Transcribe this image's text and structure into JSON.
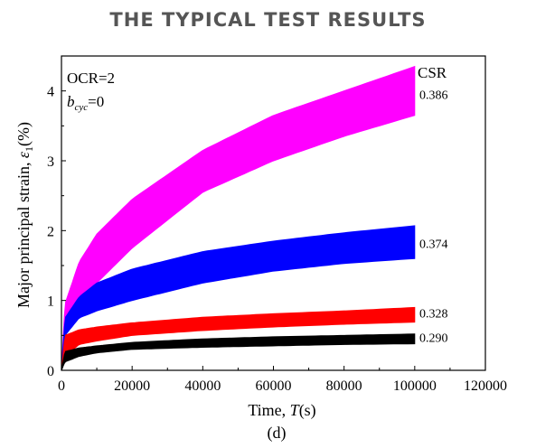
{
  "page": {
    "title": "THE TYPICAL TEST RESULTS"
  },
  "chart_data": {
    "type": "area",
    "panel_label": "(d)",
    "xlabel_prefix": "Time, ",
    "xlabel_symbol": "T",
    "xlabel_suffix": "(s)",
    "ylabel_prefix": "Major principal strain, ",
    "ylabel_symbol": "ε",
    "ylabel_subscript": "1",
    "ylabel_suffix": "(%)",
    "xlim": [
      0,
      120000
    ],
    "ylim": [
      0,
      4.5
    ],
    "xticks": [
      0,
      20000,
      40000,
      60000,
      80000,
      100000,
      120000
    ],
    "yticks": [
      0,
      1,
      2,
      3,
      4
    ],
    "annotations": {
      "ocr": "OCR=2",
      "bcyc_symbol": "b",
      "bcyc_subscript": "cyc",
      "bcyc_value": "=0"
    },
    "legend_title": "CSR",
    "x": [
      0,
      1000,
      5000,
      10000,
      20000,
      40000,
      60000,
      80000,
      100000
    ],
    "series": [
      {
        "name": "0.386",
        "color": "#ff00ff",
        "upper": [
          0.0,
          0.95,
          1.55,
          1.95,
          2.45,
          3.15,
          3.65,
          4.0,
          4.35
        ],
        "lower": [
          0.0,
          0.5,
          0.95,
          1.25,
          1.75,
          2.55,
          3.0,
          3.35,
          3.65
        ]
      },
      {
        "name": "0.374",
        "color": "#0000ff",
        "upper": [
          0.0,
          0.75,
          1.05,
          1.25,
          1.45,
          1.7,
          1.85,
          1.97,
          2.07
        ],
        "lower": [
          0.0,
          0.5,
          0.75,
          0.85,
          1.0,
          1.25,
          1.42,
          1.53,
          1.6
        ]
      },
      {
        "name": "0.328",
        "color": "#ff0000",
        "upper": [
          0.0,
          0.5,
          0.58,
          0.62,
          0.68,
          0.76,
          0.81,
          0.85,
          0.9
        ],
        "lower": [
          0.0,
          0.2,
          0.37,
          0.42,
          0.5,
          0.57,
          0.62,
          0.66,
          0.69
        ]
      },
      {
        "name": "0.290",
        "color": "#000000",
        "upper": [
          0.0,
          0.27,
          0.32,
          0.35,
          0.4,
          0.45,
          0.48,
          0.5,
          0.52
        ],
        "lower": [
          0.0,
          0.12,
          0.2,
          0.25,
          0.3,
          0.33,
          0.35,
          0.37,
          0.38
        ]
      }
    ]
  }
}
